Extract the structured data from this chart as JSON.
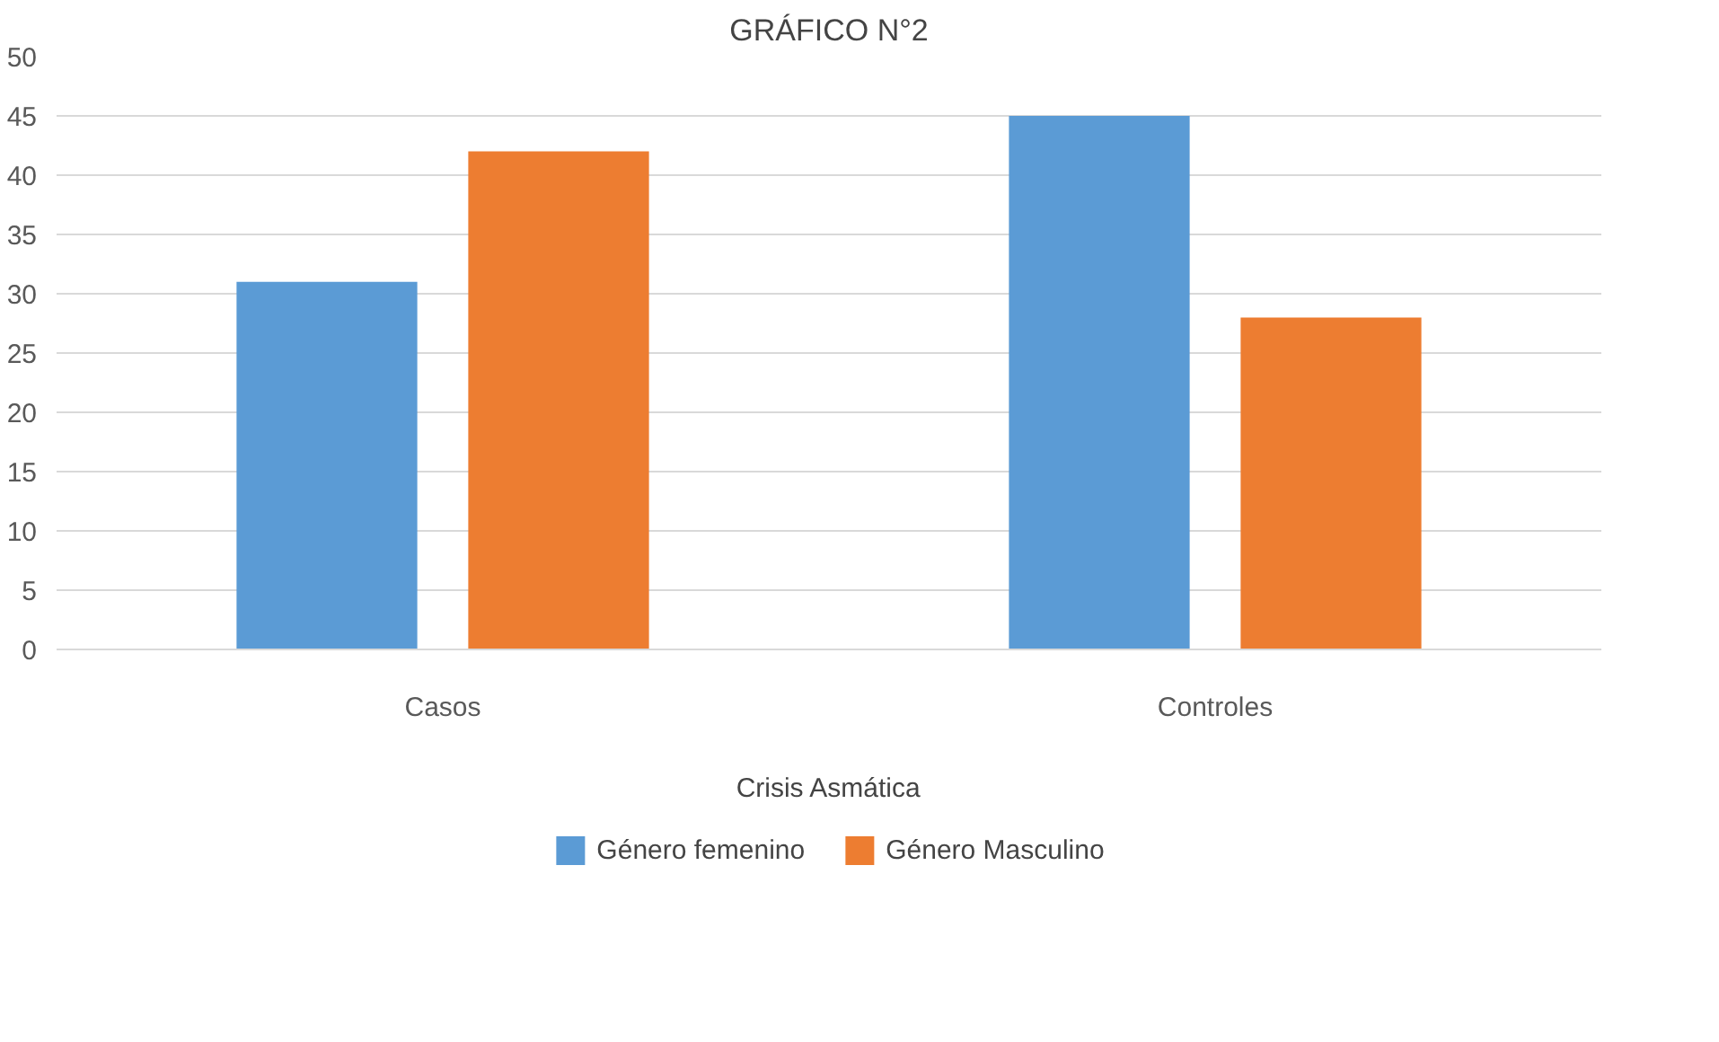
{
  "chart_data": {
    "type": "bar",
    "title": "GRÁFICO N°2",
    "xlabel": "Crisis Asmática",
    "categories": [
      "Casos",
      "Controles"
    ],
    "series": [
      {
        "name": "Género femenino",
        "color": "#5b9bd5",
        "values": [
          31,
          45
        ]
      },
      {
        "name": "Género Masculino",
        "color": "#ed7d31",
        "values": [
          42,
          28
        ]
      }
    ],
    "ylim": [
      0,
      50
    ],
    "yticks": [
      0,
      5,
      10,
      15,
      20,
      25,
      30,
      35,
      40,
      45,
      50
    ],
    "grid": "y",
    "legend": "bottom"
  }
}
